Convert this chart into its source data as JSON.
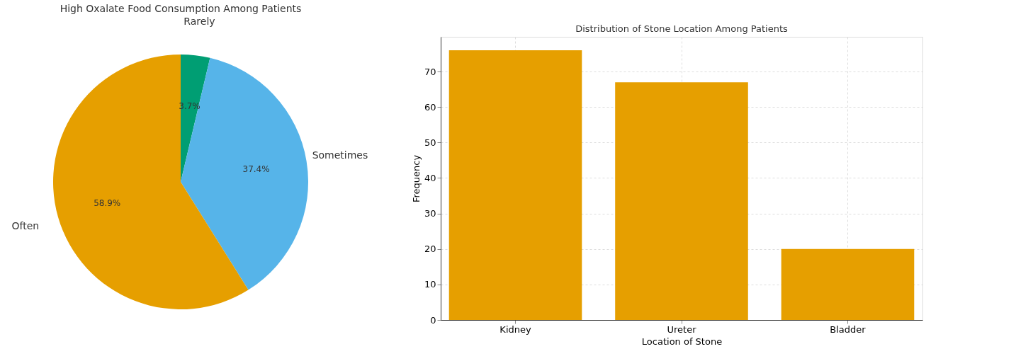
{
  "chart_data": [
    {
      "type": "pie",
      "title": "High Oxalate Food Consumption Among Patients",
      "categories": [
        "Rarely",
        "Sometimes",
        "Often"
      ],
      "values": [
        3.7,
        37.4,
        58.9
      ],
      "colors": [
        "#009e73",
        "#56b4e9",
        "#e69f00"
      ],
      "value_labels": [
        "3.7%",
        "37.4%",
        "58.9%"
      ]
    },
    {
      "type": "bar",
      "title": "Distribution of Stone Location Among Patients",
      "xlabel": "Location of Stone",
      "ylabel": "Frequency",
      "categories": [
        "Kidney",
        "Ureter",
        "Bladder"
      ],
      "values": [
        76,
        67,
        20
      ],
      "color": "#e69f00",
      "ylim": [
        0,
        79.8
      ],
      "yticks": [
        0,
        10,
        20,
        30,
        40,
        50,
        60,
        70
      ],
      "grid": true
    }
  ]
}
